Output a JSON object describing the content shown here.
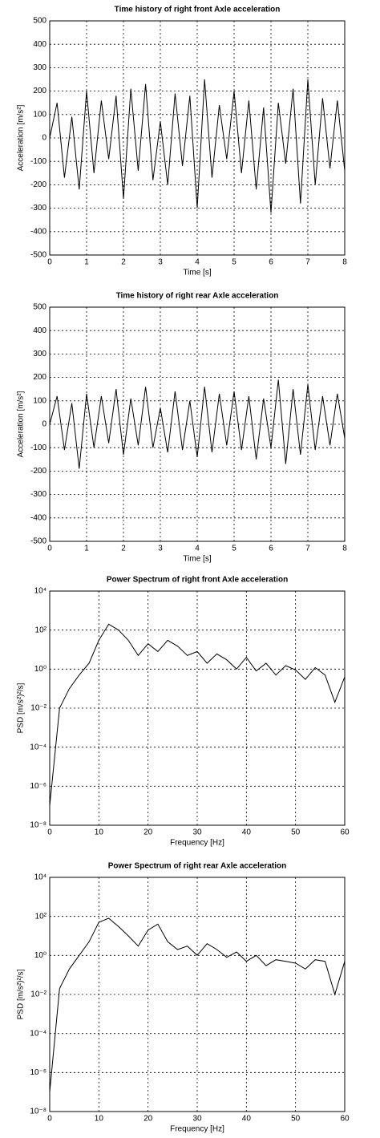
{
  "chart_data": [
    {
      "type": "line",
      "title": "Time history of right front  Axle acceleration",
      "xlabel": "Time [s]",
      "ylabel": "Acceleration [m/s²]",
      "x": [
        0,
        0.2,
        0.4,
        0.6,
        0.8,
        1,
        1.2,
        1.4,
        1.6,
        1.8,
        2,
        2.2,
        2.4,
        2.6,
        2.8,
        3,
        3.2,
        3.4,
        3.6,
        3.8,
        4,
        4.2,
        4.4,
        4.6,
        4.8,
        5,
        5.2,
        5.4,
        5.6,
        5.8,
        6,
        6.2,
        6.4,
        6.6,
        6.8,
        7,
        7.2,
        7.4,
        7.6,
        7.8,
        8
      ],
      "series": [
        {
          "color": "#000000",
          "values": [
            0,
            150,
            -170,
            90,
            -220,
            200,
            -150,
            160,
            -90,
            180,
            -260,
            210,
            -140,
            230,
            -180,
            70,
            -200,
            190,
            -120,
            180,
            -300,
            250,
            -170,
            140,
            -90,
            200,
            -150,
            160,
            -220,
            130,
            -320,
            150,
            -110,
            210,
            -280,
            250,
            -200,
            170,
            -130,
            160,
            -140
          ]
        }
      ],
      "xlim": [
        0,
        8
      ],
      "xticks": [
        0,
        1,
        2,
        3,
        4,
        5,
        6,
        7,
        8
      ],
      "ylim": [
        -500,
        500
      ],
      "yticks": [
        -500,
        -400,
        -300,
        -200,
        -100,
        0,
        100,
        200,
        300,
        400,
        500
      ],
      "grid": true,
      "log_y": false
    },
    {
      "type": "line",
      "title": "Time history of right rear  Axle acceleration",
      "xlabel": "Time [s]",
      "ylabel": "Acceleration [m/s²]",
      "x": [
        0,
        0.2,
        0.4,
        0.6,
        0.8,
        1,
        1.2,
        1.4,
        1.6,
        1.8,
        2,
        2.2,
        2.4,
        2.6,
        2.8,
        3,
        3.2,
        3.4,
        3.6,
        3.8,
        4,
        4.2,
        4.4,
        4.6,
        4.8,
        5,
        5.2,
        5.4,
        5.6,
        5.8,
        6,
        6.2,
        6.4,
        6.6,
        6.8,
        7,
        7.2,
        7.4,
        7.6,
        7.8,
        8
      ],
      "series": [
        {
          "color": "#000000",
          "values": [
            0,
            120,
            -110,
            90,
            -190,
            130,
            -100,
            120,
            -80,
            150,
            -130,
            110,
            -90,
            160,
            -100,
            70,
            -120,
            140,
            -110,
            100,
            -140,
            160,
            -120,
            130,
            -90,
            140,
            -110,
            120,
            -150,
            110,
            -100,
            190,
            -170,
            150,
            -130,
            170,
            -110,
            120,
            -90,
            130,
            -60
          ]
        }
      ],
      "xlim": [
        0,
        8
      ],
      "xticks": [
        0,
        1,
        2,
        3,
        4,
        5,
        6,
        7,
        8
      ],
      "ylim": [
        -500,
        500
      ],
      "yticks": [
        -500,
        -400,
        -300,
        -200,
        -100,
        0,
        100,
        200,
        300,
        400,
        500
      ],
      "grid": true,
      "log_y": false
    },
    {
      "type": "line",
      "title": "Power Spectrum of right front Axle acceleration",
      "xlabel": "Frequency [Hz]",
      "ylabel": "PSD [m/s²)²/s]",
      "x": [
        0,
        2,
        4,
        6,
        8,
        10,
        12,
        14,
        16,
        18,
        20,
        22,
        24,
        26,
        28,
        30,
        32,
        34,
        36,
        38,
        40,
        42,
        44,
        46,
        48,
        50,
        52,
        54,
        56,
        58,
        60
      ],
      "series": [
        {
          "color": "#000000",
          "values": [
            1e-07,
            0.01,
            0.1,
            0.5,
            2,
            30,
            200,
            100,
            30,
            5,
            20,
            8,
            30,
            15,
            5,
            8,
            2,
            6,
            3,
            1,
            4,
            0.8,
            2,
            0.5,
            1.5,
            0.9,
            0.3,
            1.2,
            0.5,
            0.02,
            0.4
          ]
        }
      ],
      "xlim": [
        0,
        60
      ],
      "xticks": [
        0,
        10,
        20,
        30,
        40,
        50,
        60
      ],
      "ylim": [
        1e-08,
        10000
      ],
      "yticks": [
        {
          "value": 1e-08,
          "label": "10⁻⁸"
        },
        {
          "value": 1e-06,
          "label": "10⁻⁶"
        },
        {
          "value": 0.0001,
          "label": "10⁻⁴"
        },
        {
          "value": 0.01,
          "label": "10⁻²"
        },
        {
          "value": 1,
          "label": "10⁰"
        },
        {
          "value": 100,
          "label": "10²"
        },
        {
          "value": 10000,
          "label": "10⁴"
        }
      ],
      "grid": true,
      "log_y": true
    },
    {
      "type": "line",
      "title": "Power Spectrum of right rear  Axle acceleration",
      "xlabel": "Frequency [Hz]",
      "ylabel": "PSD [m/s²)²/s]",
      "x": [
        0,
        2,
        4,
        6,
        8,
        10,
        12,
        14,
        16,
        18,
        20,
        22,
        24,
        26,
        28,
        30,
        32,
        34,
        36,
        38,
        40,
        42,
        44,
        46,
        48,
        50,
        52,
        54,
        56,
        58,
        60
      ],
      "series": [
        {
          "color": "#000000",
          "values": [
            1e-07,
            0.02,
            0.2,
            1,
            5,
            50,
            80,
            30,
            10,
            3,
            20,
            40,
            5,
            2,
            3,
            1,
            4,
            2,
            0.8,
            1.5,
            0.5,
            1,
            0.3,
            0.6,
            0.5,
            0.4,
            0.2,
            0.6,
            0.5,
            0.01,
            0.5
          ]
        }
      ],
      "xlim": [
        0,
        60
      ],
      "xticks": [
        0,
        10,
        20,
        30,
        40,
        50,
        60
      ],
      "ylim": [
        1e-08,
        10000
      ],
      "yticks": [
        {
          "value": 1e-08,
          "label": "10⁻⁸"
        },
        {
          "value": 1e-06,
          "label": "10⁻⁶"
        },
        {
          "value": 0.0001,
          "label": "10⁻⁴"
        },
        {
          "value": 0.01,
          "label": "10⁻²"
        },
        {
          "value": 1,
          "label": "10⁰"
        },
        {
          "value": 100,
          "label": "10²"
        },
        {
          "value": 10000,
          "label": "10⁴"
        }
      ],
      "grid": true,
      "log_y": true
    }
  ]
}
